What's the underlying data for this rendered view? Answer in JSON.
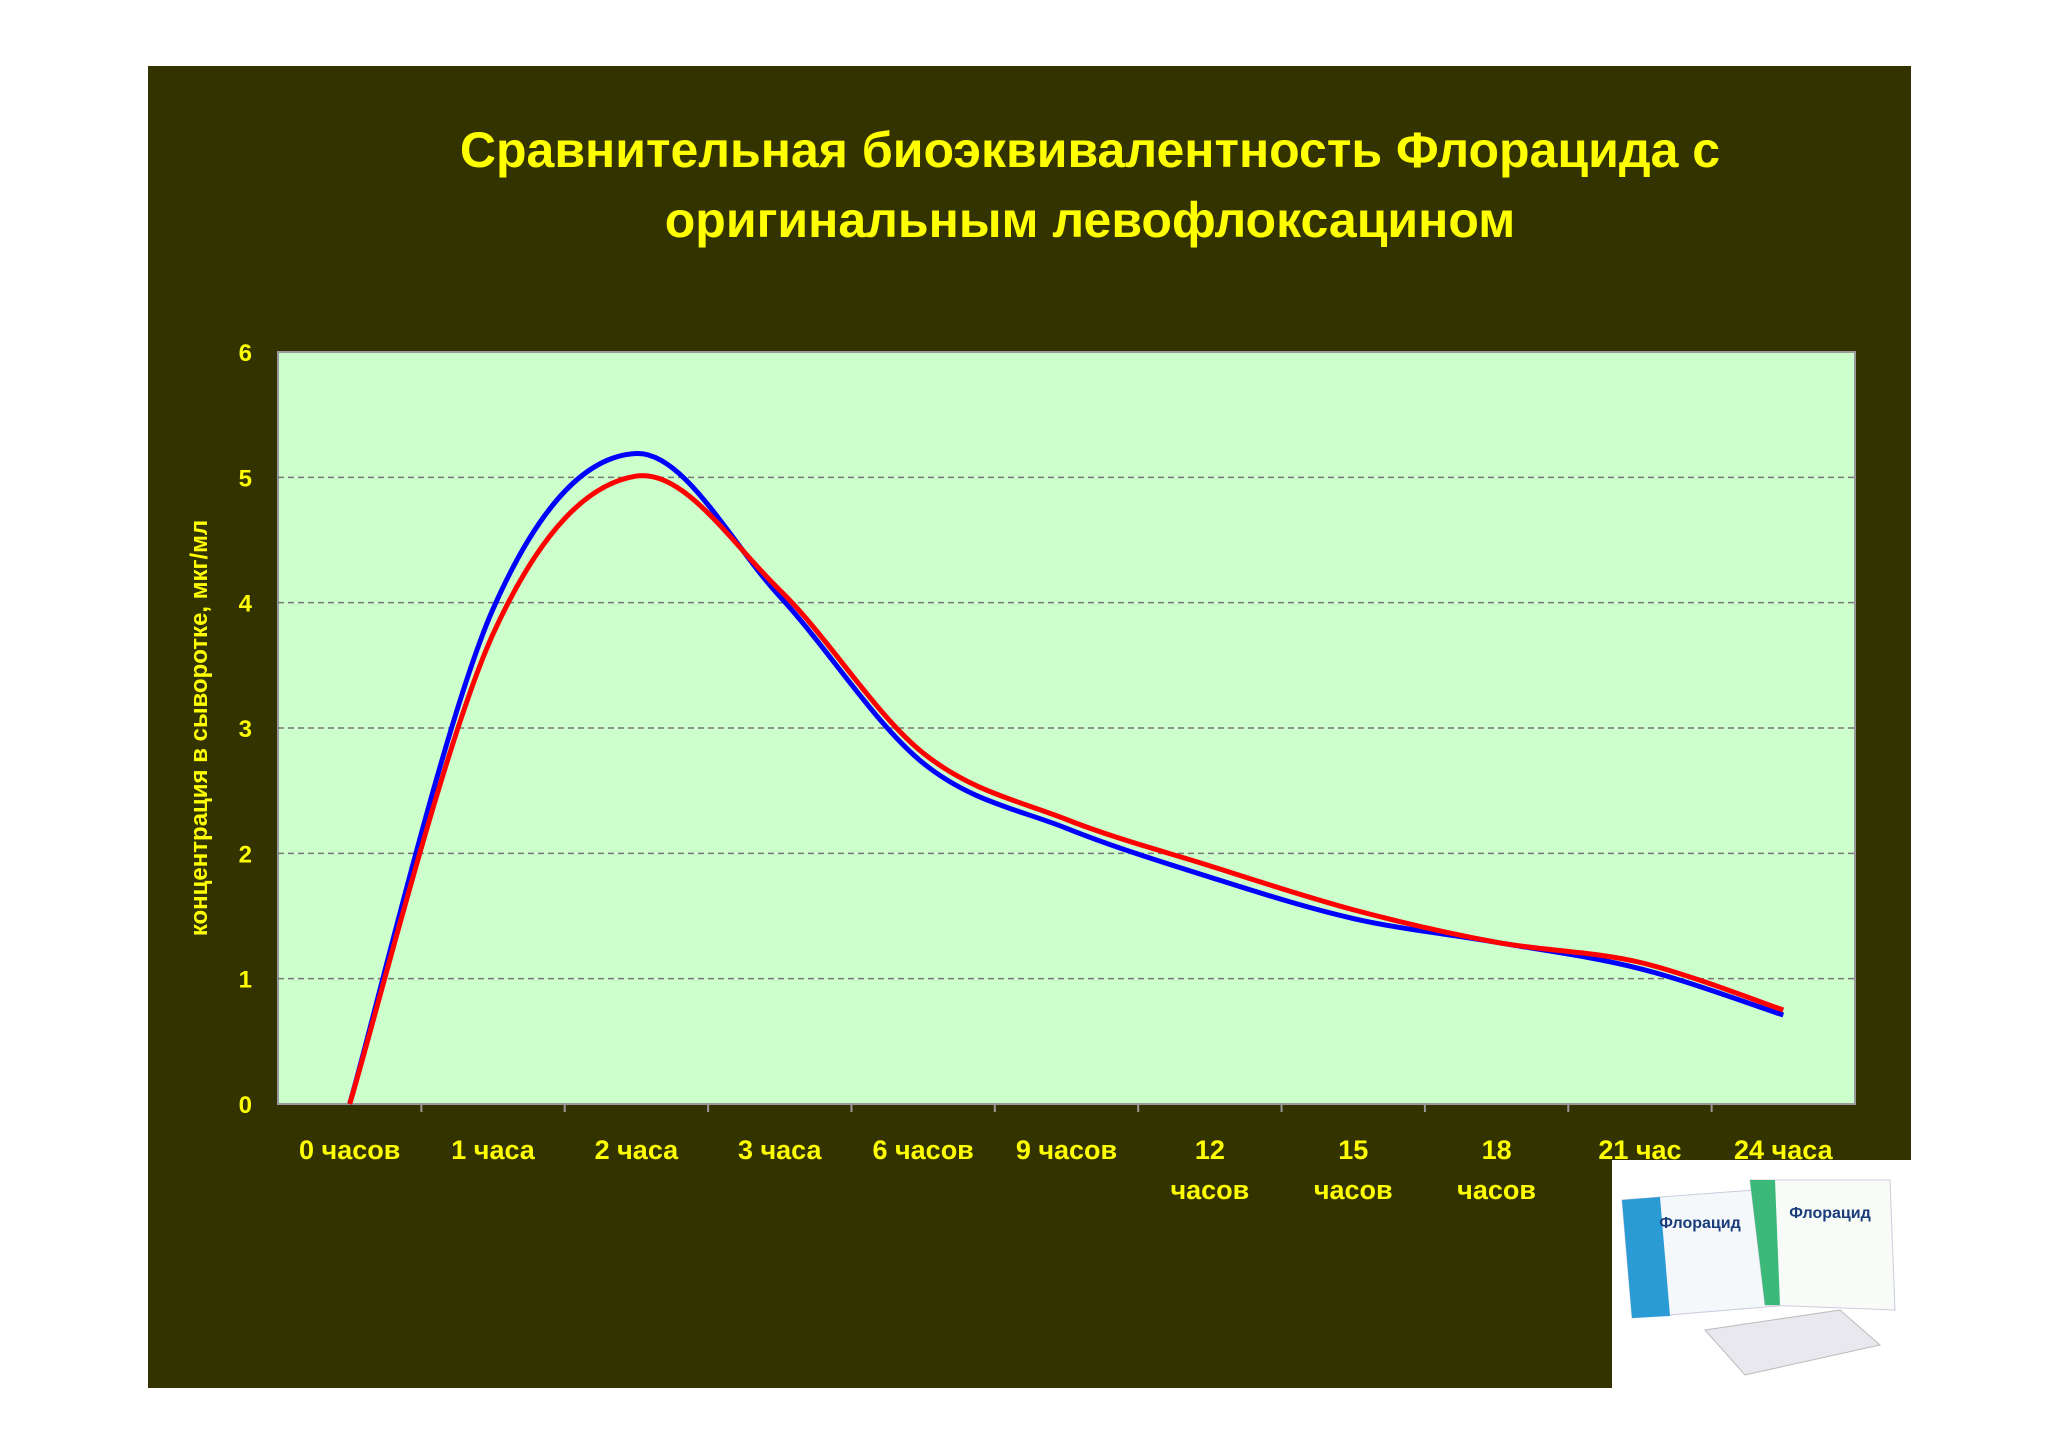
{
  "chart_data": {
    "type": "line",
    "title": "Сравнительная биоэквивалентность Флорацида с оригинальным левофлоксацином",
    "y_label": "концентрация в сыворотке, мкг/мл",
    "categories": [
      "0 часов",
      "1 часа",
      "2 часа",
      "3 часа",
      "6 часов",
      "9 часов",
      "12 часов",
      "15 часов",
      "18 часов",
      "21 час",
      "24 часа"
    ],
    "series": [
      {
        "color": "#0000ff",
        "values": [
          0,
          3.95,
          5.19,
          4.05,
          2.72,
          2.2,
          1.81,
          1.48,
          1.29,
          1.08,
          0.71
        ]
      },
      {
        "color": "#ff0000",
        "values": [
          0,
          3.75,
          5.01,
          4.1,
          2.8,
          2.27,
          1.9,
          1.55,
          1.29,
          1.13,
          0.75
        ]
      }
    ],
    "ylim": [
      0,
      6
    ],
    "yticks": [
      0,
      1,
      2,
      3,
      4,
      5,
      6
    ],
    "grid": true
  },
  "product_image": {
    "box_labels": [
      "Флорацид",
      "Флорацид"
    ]
  }
}
